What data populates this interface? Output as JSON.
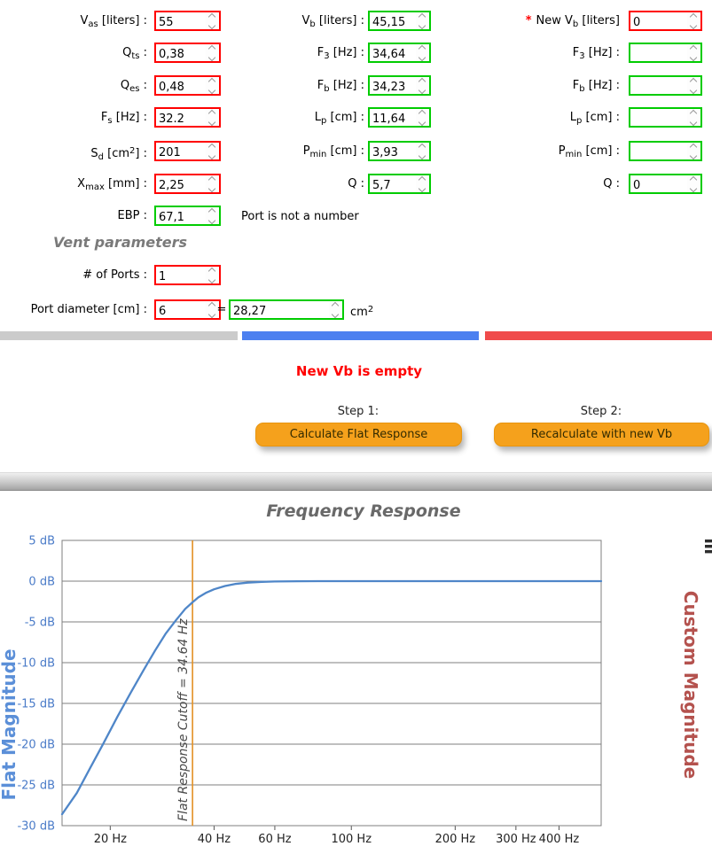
{
  "form": {
    "driver": {
      "rows": [
        {
          "pre": "V",
          "sub": "as",
          "mid": " [liters] :",
          "value": "55"
        },
        {
          "pre": "Q",
          "sub": "ts",
          "mid": " :",
          "value": "0,38"
        },
        {
          "pre": "Q",
          "sub": "es",
          "mid": " :",
          "value": "0,48"
        },
        {
          "pre": "F",
          "sub": "s",
          "mid": " [Hz] :",
          "value": "32.2"
        },
        {
          "pre": "S",
          "sub": "d",
          "mid": " [cm",
          "sup": "2",
          "post": "] :",
          "value": "201"
        },
        {
          "pre": "X",
          "sub": "max",
          "mid": " [mm] :",
          "value": "2,25"
        },
        {
          "pre": "EBP :",
          "value": "67,1"
        }
      ]
    },
    "flat": {
      "rows": [
        {
          "pre": "V",
          "sub": "b",
          "mid": " [liters] :",
          "value": "45,15"
        },
        {
          "pre": "F",
          "sub": "3",
          "mid": " [Hz] :",
          "value": "34,64"
        },
        {
          "pre": "F",
          "sub": "b",
          "mid": " [Hz] :",
          "value": "34,23"
        },
        {
          "pre": "L",
          "sub": "p",
          "mid": " [cm] :",
          "value": "11,64"
        },
        {
          "pre": "P",
          "sub": "min",
          "mid": " [cm] :",
          "value": "3,93"
        },
        {
          "pre": "Q :",
          "value": "5,7"
        }
      ],
      "message": "Port is not a number"
    },
    "custom": {
      "rows": [
        {
          "star": "*",
          "pre": "New V",
          "sub": "b",
          "mid": " [liters]",
          "value": "0"
        },
        {
          "pre": "F",
          "sub": "3",
          "mid": " [Hz] :",
          "value": ""
        },
        {
          "pre": "F",
          "sub": "b",
          "mid": " [Hz] :",
          "value": ""
        },
        {
          "pre": "L",
          "sub": "p",
          "mid": " [cm] :",
          "value": ""
        },
        {
          "pre": "P",
          "sub": "min",
          "mid": " [cm] :",
          "value": ""
        },
        {
          "pre": "Q :",
          "value": "0"
        }
      ]
    },
    "vent": {
      "heading": "Vent parameters",
      "ports_label": "# of Ports :",
      "ports_value": "1",
      "diameter_label": "Port diameter [cm] :",
      "diameter_value": "6",
      "equals": "=",
      "area_value": "28,27",
      "area_unit_pre": "cm",
      "area_unit_sup": "2"
    }
  },
  "status": {
    "error": "New Vb is empty"
  },
  "steps": {
    "step1": "Step 1:",
    "button1": "Calculate Flat Response",
    "step2": "Step 2:",
    "button2": "Recalculate with new Vb"
  },
  "colors": {
    "required_border": "#ff0000",
    "calculated_border": "#00cc00",
    "bar_gray": "#cbcbcb",
    "bar_blue": "#4c80f0",
    "bar_red": "#f04b4b",
    "button_orange": "#f5a11c",
    "error_red": "#ff0000"
  },
  "chart_data": {
    "type": "line",
    "title": "Frequency Response",
    "x_axis": {
      "scale": "log",
      "range": [
        14.5,
        530
      ],
      "ticks": [
        20,
        40,
        60,
        100,
        200,
        300,
        400
      ],
      "tick_labels": [
        "20 Hz",
        "40 Hz",
        "60 Hz",
        "100 Hz",
        "200 Hz",
        "300 Hz",
        "400 Hz"
      ],
      "color": "#222222"
    },
    "y_axis": {
      "range": [
        -30,
        5
      ],
      "ticks": [
        5,
        0,
        -5,
        -10,
        -15,
        -20,
        -25,
        -30
      ],
      "tick_labels": [
        "5 dB",
        "0 dB",
        "-5 dB",
        "-10 dB",
        "-15 dB",
        "-20 dB",
        "-25 dB",
        "-30 dB"
      ],
      "color": "#4a7bc8"
    },
    "left_axis": {
      "label": "Flat Magnitude",
      "color": "#5b8fd8"
    },
    "right_axis": {
      "label": "Custom Magnitude",
      "color": "#b4524e"
    },
    "grid": "horizontal-only",
    "annotation": {
      "label": "Flat Response Cutoff = 34.64 Hz",
      "frequency": 34.64,
      "color": "#e39125"
    },
    "series": [
      {
        "name": "Flat Magnitude",
        "color": "#4f86c8",
        "points": [
          [
            14.5,
            -28.6
          ],
          [
            16,
            -26.0
          ],
          [
            17.5,
            -22.9
          ],
          [
            19,
            -20.1
          ],
          [
            21,
            -16.6
          ],
          [
            23,
            -13.6
          ],
          [
            25,
            -10.9
          ],
          [
            27,
            -8.5
          ],
          [
            29,
            -6.4
          ],
          [
            31,
            -4.8
          ],
          [
            33,
            -3.4
          ],
          [
            34.64,
            -2.6
          ],
          [
            36,
            -2.0
          ],
          [
            38,
            -1.4
          ],
          [
            40,
            -1.0
          ],
          [
            43,
            -0.6
          ],
          [
            46,
            -0.35
          ],
          [
            50,
            -0.19
          ],
          [
            55,
            -0.09
          ],
          [
            60,
            -0.04
          ],
          [
            70,
            -0.01
          ],
          [
            80,
            0
          ],
          [
            100,
            0
          ],
          [
            150,
            0
          ],
          [
            200,
            0
          ],
          [
            300,
            0
          ],
          [
            400,
            0
          ],
          [
            530,
            0
          ]
        ]
      }
    ]
  }
}
